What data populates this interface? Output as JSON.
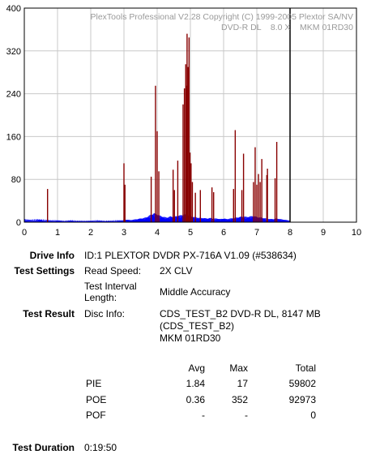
{
  "chart_data": {
    "type": "bar",
    "title_lines": [
      "PlexTools Professional V2.28 Copyright (C) 1999-2005 Plextor SA/NV",
      "DVD-R DL    8.0 X    MKM 01RD30"
    ],
    "xlim": [
      0,
      10
    ],
    "ylim": [
      0,
      400
    ],
    "x_ticks": [
      "0",
      "1",
      "2",
      "3",
      "4",
      "5",
      "6",
      "7",
      "8",
      "9",
      "10"
    ],
    "y_ticks": [
      "0",
      "80",
      "160",
      "240",
      "320",
      "400"
    ],
    "grid": true,
    "end_marker_x": 8.0,
    "colors": {
      "poe": "#880000",
      "pie": "#0000ff",
      "grid": "#c8c8c8",
      "marker": "#000000"
    },
    "series": [
      {
        "key": "POE",
        "points": [
          [
            0.7,
            62
          ],
          [
            3.0,
            110
          ],
          [
            3.03,
            70
          ],
          [
            3.82,
            85
          ],
          [
            3.95,
            255
          ],
          [
            4.0,
            170
          ],
          [
            4.05,
            95
          ],
          [
            4.48,
            98
          ],
          [
            4.52,
            60
          ],
          [
            4.62,
            115
          ],
          [
            4.78,
            220
          ],
          [
            4.82,
            250
          ],
          [
            4.86,
            295
          ],
          [
            4.88,
            255
          ],
          [
            4.9,
            352
          ],
          [
            4.93,
            290
          ],
          [
            4.96,
            345
          ],
          [
            4.99,
            130
          ],
          [
            5.02,
            110
          ],
          [
            5.06,
            75
          ],
          [
            5.15,
            55
          ],
          [
            5.3,
            60
          ],
          [
            5.65,
            65
          ],
          [
            5.7,
            56
          ],
          [
            6.3,
            62
          ],
          [
            6.35,
            172
          ],
          [
            6.55,
            60
          ],
          [
            6.6,
            128
          ],
          [
            6.9,
            75
          ],
          [
            6.95,
            140
          ],
          [
            7.0,
            70
          ],
          [
            7.05,
            90
          ],
          [
            7.1,
            75
          ],
          [
            7.15,
            118
          ],
          [
            7.3,
            88
          ],
          [
            7.32,
            100
          ],
          [
            7.55,
            82
          ],
          [
            7.6,
            150
          ]
        ]
      },
      {
        "key": "PIE",
        "points": [
          [
            0.0,
            6
          ],
          [
            0.2,
            5
          ],
          [
            0.4,
            6
          ],
          [
            0.6,
            5
          ],
          [
            0.8,
            4
          ],
          [
            1.0,
            4
          ],
          [
            1.2,
            3
          ],
          [
            1.4,
            4
          ],
          [
            1.6,
            3
          ],
          [
            1.8,
            3
          ],
          [
            2.0,
            3
          ],
          [
            2.2,
            4
          ],
          [
            2.4,
            3
          ],
          [
            2.6,
            3
          ],
          [
            2.8,
            4
          ],
          [
            3.0,
            4
          ],
          [
            3.1,
            5
          ],
          [
            3.2,
            4
          ],
          [
            3.3,
            5
          ],
          [
            3.4,
            6
          ],
          [
            3.5,
            7
          ],
          [
            3.6,
            8
          ],
          [
            3.7,
            10
          ],
          [
            3.8,
            14
          ],
          [
            3.9,
            17
          ],
          [
            4.0,
            15
          ],
          [
            4.1,
            12
          ],
          [
            4.2,
            10
          ],
          [
            4.3,
            9
          ],
          [
            4.4,
            11
          ],
          [
            4.5,
            10
          ],
          [
            4.6,
            12
          ],
          [
            4.7,
            13
          ],
          [
            4.8,
            15
          ],
          [
            4.9,
            14
          ],
          [
            5.0,
            12
          ],
          [
            5.1,
            10
          ],
          [
            5.2,
            9
          ],
          [
            5.3,
            8
          ],
          [
            5.4,
            8
          ],
          [
            5.5,
            7
          ],
          [
            5.6,
            8
          ],
          [
            5.7,
            7
          ],
          [
            5.8,
            7
          ],
          [
            5.9,
            6
          ],
          [
            6.0,
            7
          ],
          [
            6.1,
            6
          ],
          [
            6.2,
            7
          ],
          [
            6.3,
            8
          ],
          [
            6.4,
            9
          ],
          [
            6.5,
            10
          ],
          [
            6.6,
            11
          ],
          [
            6.7,
            10
          ],
          [
            6.8,
            11
          ],
          [
            6.9,
            12
          ],
          [
            7.0,
            10
          ],
          [
            7.1,
            9
          ],
          [
            7.2,
            8
          ],
          [
            7.3,
            7
          ],
          [
            7.4,
            6
          ],
          [
            7.5,
            6
          ],
          [
            7.6,
            7
          ],
          [
            7.7,
            6
          ],
          [
            7.8,
            5
          ],
          [
            7.9,
            4
          ],
          [
            8.0,
            3
          ]
        ]
      }
    ]
  },
  "info": {
    "drive_info_label": "Drive Info",
    "drive_info_value": "ID:1 PLEXTOR DVDR PX-716A V1.09 (#538634)",
    "test_settings_label": "Test Settings",
    "read_speed_label": "Read Speed:",
    "read_speed_value": "2X CLV",
    "interval_label_1": "Test Interval",
    "interval_label_2": "Length:",
    "interval_value": "Middle Accuracy",
    "test_result_label": "Test Result",
    "disc_info_label": "Disc Info:",
    "disc_info_line1": "CDS_TEST_B2 DVD-R DL, 8147 MB",
    "disc_info_line2": "(CDS_TEST_B2)",
    "disc_info_line3": "MKM 01RD30",
    "test_duration_label": "Test Duration",
    "test_duration_value": "0:19:50"
  },
  "stats": {
    "headers": {
      "avg": "Avg",
      "max": "Max",
      "total": "Total"
    },
    "rows": [
      {
        "name": "PIE",
        "avg": "1.84",
        "max": "17",
        "total": "59802"
      },
      {
        "name": "POE",
        "avg": "0.36",
        "max": "352",
        "total": "92973"
      },
      {
        "name": "POF",
        "avg": "-",
        "max": "-",
        "total": "0"
      }
    ]
  }
}
